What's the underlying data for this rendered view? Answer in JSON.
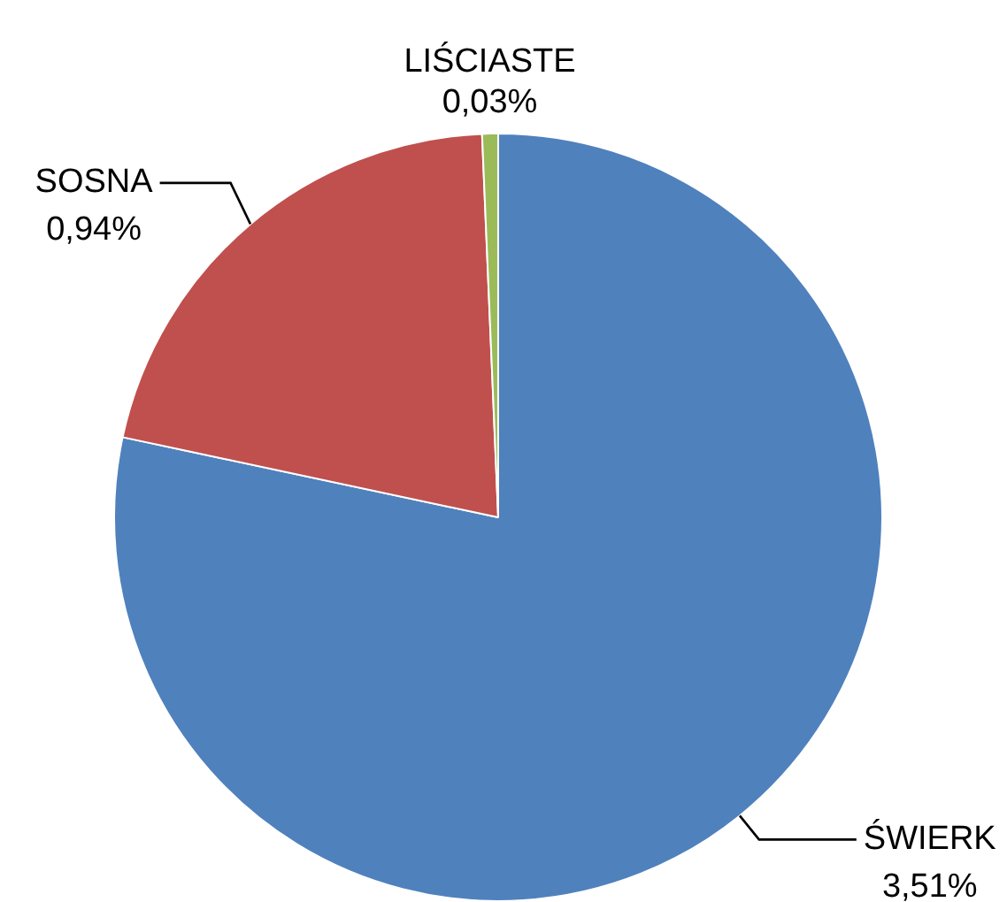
{
  "chart_data": {
    "type": "pie",
    "categories": [
      "ŚWIERK",
      "SOSNA",
      "LIŚCIASTE"
    ],
    "values": [
      3.51,
      0.94,
      0.03
    ],
    "value_labels": [
      "3,51%",
      "0,94%",
      "0,03%"
    ],
    "colors": [
      "#4f81bd",
      "#c0504d",
      "#9bbb59"
    ],
    "legend": false
  }
}
